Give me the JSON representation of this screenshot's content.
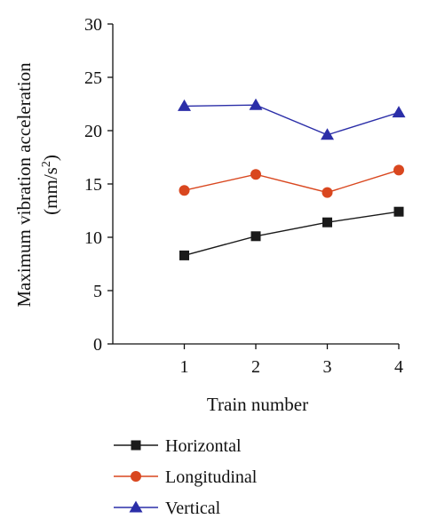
{
  "chart_data": {
    "type": "line",
    "x": [
      1,
      2,
      3,
      4
    ],
    "xlabel": "Train number",
    "ylabel_line1": "Maximum vibration acceleration",
    "ylabel_line2_main": "(mm/s",
    "ylabel_line2_sup": "2",
    "ylabel_line2_end": ")",
    "ylim": [
      0,
      30
    ],
    "yticks": [
      0,
      5,
      10,
      15,
      20,
      25,
      30
    ],
    "xticks": [
      1,
      2,
      3,
      4
    ],
    "xlim": [
      0,
      4
    ],
    "grid": false,
    "legend_position": "bottom",
    "series": [
      {
        "name": "Horizontal",
        "values": [
          8.3,
          10.1,
          11.4,
          12.4
        ],
        "color": "#1a1a1a",
        "marker": "square"
      },
      {
        "name": "Longitudinal",
        "values": [
          14.4,
          15.9,
          14.2,
          16.3
        ],
        "color": "#d9471f",
        "marker": "circle"
      },
      {
        "name": "Vertical",
        "values": [
          22.3,
          22.4,
          19.6,
          21.7
        ],
        "color": "#2b2ea8",
        "marker": "triangle"
      }
    ]
  }
}
